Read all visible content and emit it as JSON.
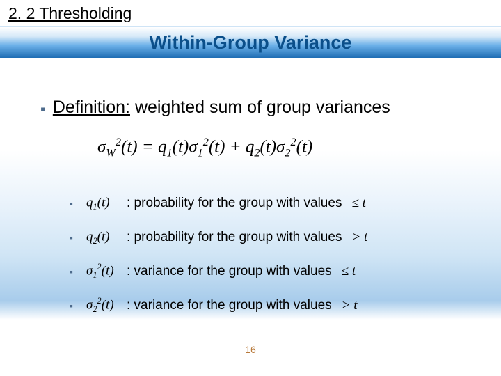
{
  "section": "2. 2 Thresholding",
  "title": "Within-Group Variance",
  "definition": {
    "label": "Definition:",
    "rest": "weighted sum of group variances"
  },
  "formula": {
    "lhs": "σ",
    "lhs_sub": "W",
    "lhs_sup": "2",
    "arg": "(t)",
    "eq": " = ",
    "t1_q": "q",
    "t1_qsub": "1",
    "t1_qarg": "(t)",
    "t1_s": "σ",
    "t1_ssub": "1",
    "t1_ssup": "2",
    "t1_sarg": "(t)",
    "plus": " + ",
    "t2_q": "q",
    "t2_qsub": "2",
    "t2_qarg": "(t)",
    "t2_s": "σ",
    "t2_ssub": "2",
    "t2_ssup": "2",
    "t2_sarg": "(t)"
  },
  "items": [
    {
      "sym": "q",
      "sub": "1",
      "sup": "",
      "arg": "(t)",
      "desc": ": probability for the group with values",
      "cond": "≤ t"
    },
    {
      "sym": "q",
      "sub": "2",
      "sup": "",
      "arg": "(t)",
      "desc": ": probability for the group with values",
      "cond": "> t"
    },
    {
      "sym": "σ",
      "sub": "1",
      "sup": "2",
      "arg": "(t)",
      "desc": ": variance for the group with values",
      "cond": "≤ t"
    },
    {
      "sym": "σ",
      "sub": "2",
      "sup": "2",
      "arg": "(t)",
      "desc": ": variance for the group with values",
      "cond": "> t"
    }
  ],
  "page": "16",
  "colors": {
    "bullet": "#4d6b8c",
    "title": "#0b4f8a",
    "pagenum": "#b8793a"
  }
}
